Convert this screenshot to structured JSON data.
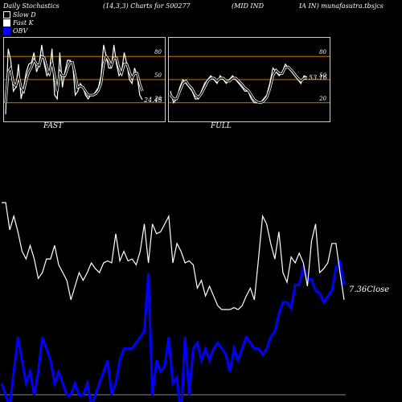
{
  "header": {
    "title": "Daily Stochastics",
    "params": "(14,3,3) Charts for 500277",
    "name": "(MID IND",
    "name2": "IA IN) munafasutra.tbsjcs"
  },
  "legend": [
    {
      "label": "Slow  D",
      "color": "#000000",
      "border": "#ffffff"
    },
    {
      "label": "Fast K",
      "color": "#ffffff",
      "border": "#ffffff"
    },
    {
      "label": "OBV",
      "color": "#0000ff",
      "border": "#0000ff"
    }
  ],
  "chart_data": [
    {
      "type": "line",
      "name": "FAST",
      "title": "FAST",
      "ylim": [
        0,
        100
      ],
      "levels": [
        20,
        50,
        80
      ],
      "tick_labels": [
        "80",
        "50",
        "20"
      ],
      "last_value_label": "24.45",
      "series": [
        {
          "name": "Fast K",
          "values": [
            5,
            90,
            75,
            35,
            40,
            70,
            25,
            40,
            60,
            70,
            72,
            85,
            60,
            70,
            95,
            70,
            55,
            60,
            90,
            30,
            25,
            85,
            40,
            60,
            75,
            75,
            70,
            30,
            35,
            45,
            40,
            30,
            25,
            30,
            30,
            35,
            40,
            55,
            95,
            80,
            65,
            65,
            95,
            70,
            55,
            60,
            85,
            70,
            50,
            45,
            65,
            55,
            30,
            24
          ]
        },
        {
          "name": "Slow D",
          "values": [
            20,
            60,
            65,
            45,
            42,
            55,
            40,
            35,
            50,
            60,
            66,
            75,
            70,
            68,
            80,
            78,
            65,
            58,
            72,
            55,
            35,
            60,
            55,
            55,
            65,
            72,
            72,
            55,
            40,
            42,
            40,
            35,
            30,
            30,
            30,
            32,
            36,
            45,
            70,
            80,
            75,
            68,
            78,
            78,
            65,
            58,
            70,
            70,
            60,
            52,
            58,
            58,
            45,
            35
          ]
        }
      ]
    },
    {
      "type": "line",
      "name": "FULL",
      "title": "FULL",
      "ylim": [
        0,
        100
      ],
      "levels": [
        20,
        50,
        80
      ],
      "tick_labels": [
        "80",
        "50",
        "20"
      ],
      "last_value_label": "53.16",
      "series": [
        {
          "name": "Full K",
          "values": [
            35,
            20,
            25,
            40,
            50,
            45,
            40,
            35,
            25,
            25,
            35,
            45,
            50,
            55,
            50,
            45,
            55,
            50,
            45,
            50,
            55,
            50,
            45,
            40,
            35,
            35,
            25,
            20,
            20,
            20,
            25,
            30,
            45,
            65,
            60,
            55,
            60,
            70,
            65,
            60,
            55,
            50,
            45,
            55,
            53
          ]
        },
        {
          "name": "Full D",
          "values": [
            30,
            25,
            25,
            35,
            45,
            48,
            42,
            38,
            30,
            27,
            32,
            40,
            48,
            52,
            52,
            48,
            52,
            52,
            48,
            48,
            52,
            52,
            48,
            44,
            39,
            36,
            30,
            24,
            21,
            20,
            22,
            27,
            38,
            55,
            62,
            58,
            58,
            66,
            66,
            62,
            57,
            52,
            48,
            52,
            52
          ]
        }
      ]
    },
    {
      "type": "line",
      "name": "Price / OBV",
      "close_label": "7.36Close",
      "series": [
        {
          "name": "Close",
          "values": [
            7.86,
            7.86,
            7.72,
            7.79,
            7.71,
            7.61,
            7.57,
            7.64,
            7.57,
            7.47,
            7.5,
            7.57,
            7.57,
            7.64,
            7.54,
            7.5,
            7.46,
            7.36,
            7.43,
            7.5,
            7.46,
            7.5,
            7.55,
            7.52,
            7.5,
            7.55,
            7.56,
            7.55,
            7.7,
            7.56,
            7.61,
            7.56,
            7.57,
            7.54,
            7.61,
            7.75,
            7.55,
            7.75,
            7.7,
            7.71,
            7.75,
            7.79,
            7.55,
            7.65,
            7.61,
            7.55,
            7.56,
            7.54,
            7.42,
            7.46,
            7.38,
            7.43,
            7.38,
            7.33,
            7.31,
            7.31,
            7.31,
            7.32,
            7.31,
            7.33,
            7.38,
            7.42,
            7.36,
            7.57,
            7.79,
            7.75,
            7.65,
            7.57,
            7.71,
            7.5,
            7.45,
            7.58,
            7.55,
            7.6,
            7.55,
            7.43,
            7.66,
            7.75,
            7.5,
            7.52,
            7.55,
            7.65,
            7.65,
            7.5,
            7.36
          ]
        },
        {
          "name": "OBV",
          "values": [
            -50,
            -60,
            -70,
            -40,
            -10,
            -30,
            -50,
            -40,
            -60,
            -40,
            -10,
            -20,
            -30,
            -50,
            -40,
            -50,
            -60,
            -60,
            -50,
            -60,
            -60,
            -50,
            -70,
            -60,
            -50,
            -40,
            -30,
            -60,
            -50,
            -30,
            -20,
            -20,
            -20,
            -15,
            -10,
            -5,
            45,
            -60,
            -30,
            -40,
            -35,
            -10,
            -50,
            -45,
            -80,
            -10,
            -60,
            -20,
            -15,
            -30,
            -20,
            -30,
            -20,
            -15,
            -20,
            -25,
            -40,
            -20,
            -30,
            -20,
            -10,
            -15,
            -20,
            -20,
            -25,
            -20,
            -10,
            -5,
            10,
            20,
            20,
            15,
            35,
            35,
            50,
            40,
            40,
            30,
            28,
            20,
            25,
            30,
            50,
            55,
            35
          ]
        }
      ]
    }
  ]
}
